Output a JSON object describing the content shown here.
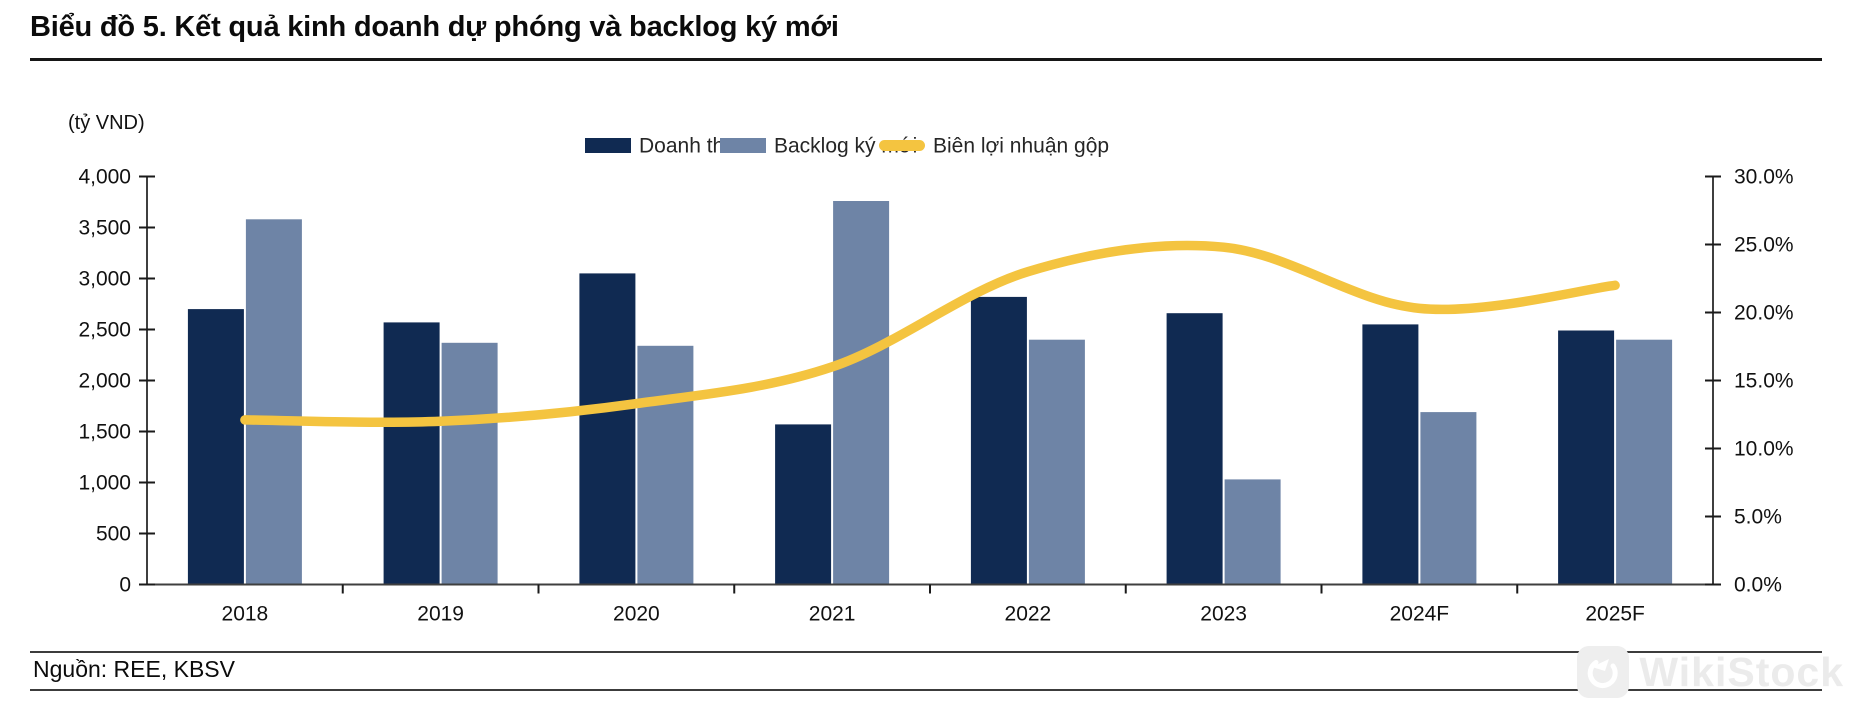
{
  "header": {
    "title": "Biểu đồ 5. Kết quả kinh doanh dự phóng và backlog ký mới"
  },
  "footer": {
    "source": "Nguồn: REE, KBSV",
    "watermark": "WikiStock"
  },
  "chart_data": {
    "type": "bar+line",
    "title": "Biểu đồ 5. Kết quả kinh doanh dự phóng và backlog ký mới",
    "unit_label": "(tỷ VND)",
    "grid": false,
    "legend_position": "top",
    "categories": [
      "2018",
      "2019",
      "2020",
      "2021",
      "2022",
      "2023",
      "2024F",
      "2025F"
    ],
    "series": [
      {
        "key": "doanh-thu",
        "name": "Doanh thu",
        "type": "bar",
        "axis": "left",
        "color": "#102a52",
        "values": [
          2700,
          2570,
          3050,
          1570,
          2820,
          2660,
          2550,
          2490
        ]
      },
      {
        "key": "backlog-ky-moi",
        "name": "Backlog ký mới",
        "type": "bar",
        "axis": "left",
        "color": "#6e84a6",
        "values": [
          3580,
          2370,
          2340,
          3760,
          2400,
          1030,
          1690,
          2400
        ]
      },
      {
        "key": "bien-loi-nhuan-gop",
        "name": "Biên lợi nhuận gộp",
        "type": "line",
        "axis": "right",
        "color": "#f4c440",
        "values": [
          12.1,
          12.0,
          13.3,
          16.0,
          23.0,
          24.8,
          20.3,
          22.0
        ]
      }
    ],
    "left_axis": {
      "min": 0,
      "max": 4000,
      "step": 500,
      "tick_labels": [
        "0",
        "500",
        "1,000",
        "1,500",
        "2,000",
        "2,500",
        "3,000",
        "3,500",
        "4,000"
      ]
    },
    "right_axis": {
      "min": 0,
      "max": 30,
      "step": 5,
      "tick_labels": [
        "0.0%",
        "5.0%",
        "10.0%",
        "15.0%",
        "20.0%",
        "25.0%",
        "30.0%"
      ]
    }
  }
}
